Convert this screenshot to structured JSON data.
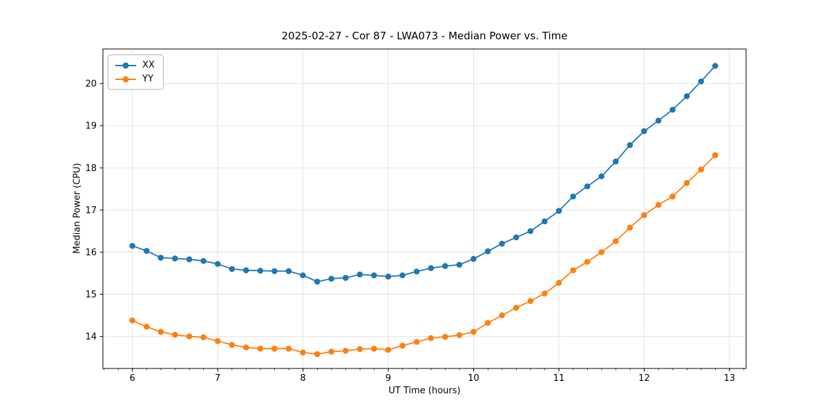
{
  "chart_data": {
    "type": "line",
    "title": "2025-02-27 - Cor 87 - LWA073 - Median Power vs. Time",
    "xlabel": "UT Time (hours)",
    "ylabel": "Median Power (CPU)",
    "grid": true,
    "legend_position": "upper left",
    "xlim": [
      5.655,
      13.195
    ],
    "ylim": [
      13.24,
      20.82
    ],
    "xticks": [
      6,
      7,
      8,
      9,
      10,
      11,
      12,
      13
    ],
    "yticks": [
      14,
      15,
      16,
      17,
      18,
      19,
      20
    ],
    "minor_xtick_step": 0.1667,
    "x": [
      6.0,
      6.167,
      6.333,
      6.5,
      6.667,
      6.833,
      7.0,
      7.167,
      7.333,
      7.5,
      7.667,
      7.833,
      8.0,
      8.167,
      8.333,
      8.5,
      8.667,
      8.833,
      9.0,
      9.167,
      9.333,
      9.5,
      9.667,
      9.833,
      10.0,
      10.167,
      10.333,
      10.5,
      10.667,
      10.833,
      11.0,
      11.167,
      11.333,
      11.5,
      11.667,
      11.833,
      12.0,
      12.167,
      12.333,
      12.5,
      12.667,
      12.833
    ],
    "series": [
      {
        "name": "XX",
        "color": "#1f77b4",
        "values": [
          16.15,
          16.03,
          15.87,
          15.85,
          15.83,
          15.79,
          15.72,
          15.6,
          15.57,
          15.56,
          15.55,
          15.55,
          15.45,
          15.3,
          15.37,
          15.39,
          15.47,
          15.45,
          15.42,
          15.45,
          15.54,
          15.62,
          15.67,
          15.7,
          15.84,
          16.02,
          16.2,
          16.35,
          16.5,
          16.73,
          16.98,
          17.32,
          17.56,
          17.8,
          18.15,
          18.54,
          18.87,
          19.12,
          19.38,
          19.7,
          20.05,
          20.42
        ]
      },
      {
        "name": "YY",
        "color": "#ff7f0e",
        "values": [
          14.38,
          14.23,
          14.11,
          14.04,
          14.0,
          13.98,
          13.89,
          13.8,
          13.74,
          13.71,
          13.71,
          13.71,
          13.62,
          13.58,
          13.64,
          13.66,
          13.7,
          13.71,
          13.68,
          13.78,
          13.87,
          13.96,
          13.99,
          14.03,
          14.11,
          14.32,
          14.5,
          14.68,
          14.84,
          15.02,
          15.27,
          15.57,
          15.77,
          16.0,
          16.26,
          16.58,
          16.88,
          17.12,
          17.32,
          17.64,
          17.96,
          18.3
        ]
      }
    ]
  }
}
